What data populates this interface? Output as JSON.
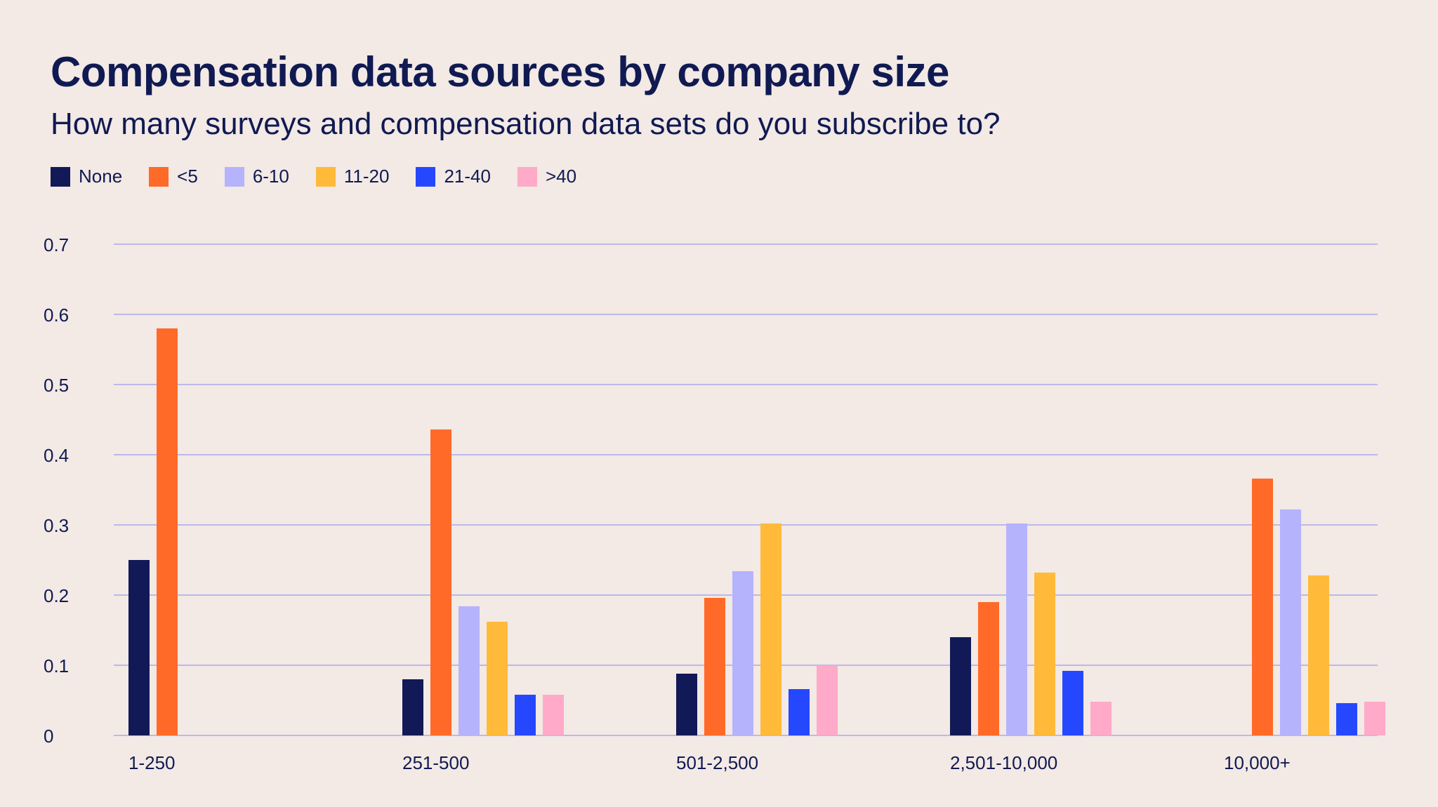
{
  "chart_data": {
    "type": "bar",
    "title": "Compensation data sources by company size",
    "subtitle": "How many surveys and compensation data sets do you subscribe to?",
    "xlabel": "",
    "ylabel": "",
    "ylim": [
      0,
      0.7
    ],
    "yticks": [
      "0",
      "0.1",
      "0.2",
      "0.3",
      "0.4",
      "0.5",
      "0.6",
      "0.7"
    ],
    "grid": true,
    "legend_position": "top-left",
    "categories": [
      "1-250",
      "251-500",
      "501-2,500",
      "2,501-10,000",
      "10,000+"
    ],
    "series": [
      {
        "name": "None",
        "color": "#111a56",
        "values": [
          0.25,
          0.08,
          0.088,
          0.14,
          0
        ]
      },
      {
        "name": "<5",
        "color": "#ff6a28",
        "values": [
          0.58,
          0.436,
          0.196,
          0.19,
          0.366
        ]
      },
      {
        "name": "6-10",
        "color": "#b5b3fb",
        "values": [
          0,
          0.184,
          0.234,
          0.302,
          0.322
        ]
      },
      {
        "name": "11-20",
        "color": "#ffba3a",
        "values": [
          0,
          0.162,
          0.302,
          0.232,
          0.228
        ]
      },
      {
        "name": "21-40",
        "color": "#2548ff",
        "values": [
          0,
          0.058,
          0.066,
          0.092,
          0.046
        ]
      },
      {
        "name": ">40",
        "color": "#ffaac8",
        "values": [
          0,
          0.058,
          0.1,
          0.048,
          0.048
        ]
      }
    ]
  },
  "colors": {
    "background": "#f3e9e5",
    "text": "#101a52",
    "grid": "#aaa9ec"
  }
}
